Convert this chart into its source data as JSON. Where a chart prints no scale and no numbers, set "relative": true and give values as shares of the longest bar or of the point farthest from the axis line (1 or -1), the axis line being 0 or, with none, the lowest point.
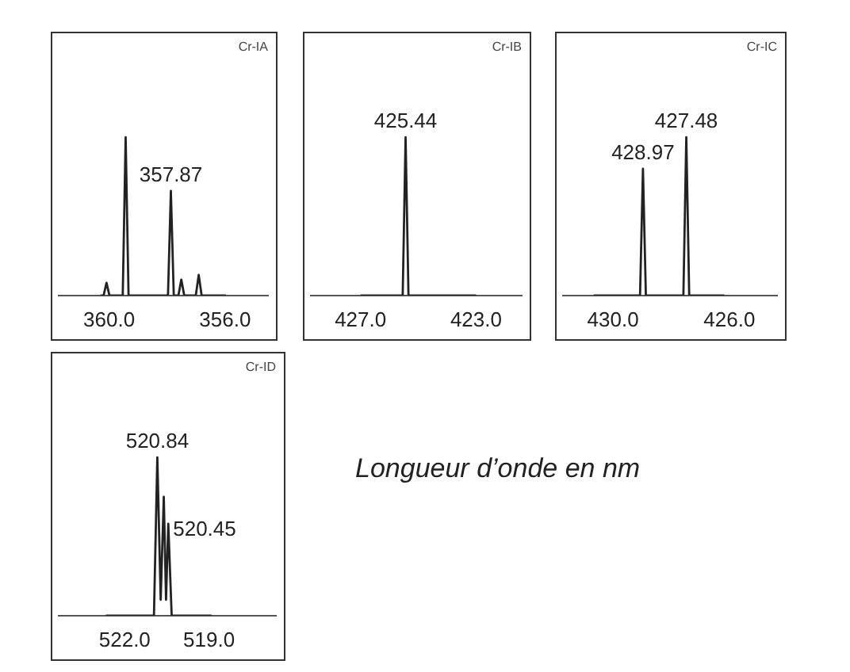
{
  "chart_data": [
    {
      "type": "line",
      "title": "Cr-IA",
      "relative": true,
      "xlim": [
        361.74,
        354.52
      ],
      "xticks": [
        {
          "value": 360,
          "label": "360.0"
        },
        {
          "value": 356,
          "label": "356.0"
        }
      ],
      "grid": false,
      "legend": false,
      "marker": "none",
      "series": [
        {
          "color": "#222222",
          "x": [
            360.3,
            360.19,
            360.09,
            359.99,
            359.53,
            359.43,
            359.33,
            357.97,
            357.87,
            357.77,
            357.61,
            357.51,
            357.41,
            357.01,
            356.91,
            356.81,
            355.97
          ],
          "values": [
            0,
            0,
            0.08,
            0,
            0,
            1,
            0,
            0,
            0.66,
            0,
            0,
            0.1,
            0,
            0,
            0.13,
            0,
            0
          ]
        }
      ],
      "annotations": [
        {
          "text": "357.87",
          "x": 357.87,
          "y": 0.66
        }
      ]
    },
    {
      "type": "line",
      "title": "Cr-IB",
      "relative": true,
      "xlim": [
        428.72,
        421.42
      ],
      "xticks": [
        {
          "value": 427,
          "label": "427.0"
        },
        {
          "value": 423,
          "label": "423.0"
        }
      ],
      "grid": false,
      "legend": false,
      "marker": "none",
      "series": [
        {
          "color": "#222222",
          "x": [
            427.0,
            425.54,
            425.44,
            425.34,
            423.0
          ],
          "values": [
            0,
            0,
            1,
            0,
            0
          ]
        }
      ],
      "annotations": [
        {
          "text": "425.44",
          "x": 425.44,
          "y": 1
        }
      ]
    },
    {
      "type": "line",
      "title": "Cr-IC",
      "relative": true,
      "xlim": [
        431.72,
        424.36
      ],
      "xticks": [
        {
          "value": 430,
          "label": "430.0"
        },
        {
          "value": 426,
          "label": "426.0"
        }
      ],
      "grid": false,
      "legend": false,
      "marker": "none",
      "series": [
        {
          "color": "#222222",
          "x": [
            430.66,
            429.07,
            428.97,
            428.87,
            427.58,
            427.48,
            427.38,
            426.17
          ],
          "values": [
            0,
            0,
            0.8,
            0,
            0,
            1,
            0,
            0
          ]
        }
      ],
      "annotations": [
        {
          "text": "428.97",
          "x": 428.97,
          "y": 0.8
        },
        {
          "text": "427.48",
          "x": 427.48,
          "y": 1
        }
      ]
    },
    {
      "type": "line",
      "title": "Cr-ID",
      "relative": true,
      "xlim": [
        524.35,
        516.62
      ],
      "xticks": [
        {
          "value": 522,
          "label": "522.0"
        },
        {
          "value": 519,
          "label": "519.0"
        }
      ],
      "grid": false,
      "legend": false,
      "marker": "none",
      "series": [
        {
          "color": "#222222",
          "x": [
            522.67,
            520.96,
            520.84,
            520.72,
            520.61,
            520.53,
            520.45,
            520.33,
            518.91
          ],
          "values": [
            0,
            0,
            1,
            0.1,
            0.75,
            0.1,
            0.58,
            0,
            0
          ]
        }
      ],
      "annotations": [
        {
          "text": "520.84",
          "x": 520.84,
          "y": 1
        },
        {
          "text": "520.45",
          "x": 520.45,
          "y": 0.58
        },
        "Longueur d’onde en nm"
      ]
    }
  ]
}
